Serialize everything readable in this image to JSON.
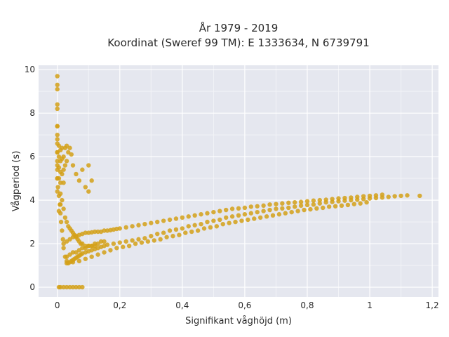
{
  "chart_data": {
    "type": "scatter",
    "title_lines": [
      "År 1979 - 2019",
      "Koordinat (Sweref 99 TM): E 1333634, N 6739791"
    ],
    "xlabel": "Signifikant våghöjd (m)",
    "ylabel": "Vågperiod (s)",
    "xlim": [
      -0.06,
      1.22
    ],
    "ylim": [
      -0.45,
      10.2
    ],
    "xticks": [
      0,
      0.2,
      0.4,
      0.6,
      0.8,
      1,
      1.2
    ],
    "xtick_labels": [
      "0",
      "0,2",
      "0,4",
      "0,6",
      "0,8",
      "1",
      "1,2"
    ],
    "yticks": [
      0,
      2,
      4,
      6,
      8,
      10
    ],
    "ytick_labels": [
      "0",
      "2",
      "4",
      "6",
      "8",
      "10"
    ],
    "grid": true,
    "colors": {
      "points": "#d4a017",
      "plot_bg": "#e5e7ef",
      "grid": "#ffffff"
    },
    "series": [
      {
        "x": [
          0.0,
          0.0,
          0.0,
          0.0,
          0.0,
          0.0,
          0.0,
          0.0,
          0.0,
          0.0,
          0.0,
          0.0,
          0.002,
          0.005,
          0.008,
          0.01,
          0.012,
          0.015,
          0.018,
          0.02,
          0.025,
          0.03,
          0.035,
          0.04,
          0.045,
          0.05,
          0.055,
          0.06,
          0.065,
          0.07,
          0.075,
          0.08,
          0.005,
          0.01,
          0.02,
          0.03,
          0.04,
          0.05,
          0.06,
          0.07,
          0.08,
          0.09,
          0.1,
          0.11,
          0.12,
          0.13,
          0.14,
          0.15,
          0.16,
          0.18,
          0.2,
          0.22,
          0.24,
          0.26,
          0.28,
          0.3,
          0.32,
          0.34,
          0.36,
          0.38,
          0.4,
          0.42,
          0.44,
          0.46,
          0.48,
          0.5,
          0.52,
          0.54,
          0.56,
          0.58,
          0.6,
          0.62,
          0.64,
          0.66,
          0.68,
          0.7,
          0.72,
          0.74,
          0.76,
          0.78,
          0.8,
          0.82,
          0.84,
          0.86,
          0.88,
          0.9,
          0.92,
          0.94,
          0.96,
          0.98,
          1.0,
          1.02,
          1.04,
          1.06,
          1.08,
          1.1,
          1.12,
          1.16,
          0.02,
          0.03,
          0.04,
          0.05,
          0.06,
          0.07,
          0.08,
          0.09,
          0.1,
          0.11,
          0.12,
          0.13,
          0.14,
          0.15,
          0.16,
          0.17,
          0.18,
          0.19,
          0.2,
          0.22,
          0.24,
          0.26,
          0.28,
          0.3,
          0.32,
          0.34,
          0.36,
          0.38,
          0.4,
          0.42,
          0.44,
          0.46,
          0.48,
          0.5,
          0.52,
          0.54,
          0.56,
          0.58,
          0.6,
          0.62,
          0.64,
          0.66,
          0.68,
          0.7,
          0.72,
          0.74,
          0.76,
          0.78,
          0.8,
          0.82,
          0.84,
          0.86,
          0.88,
          0.9,
          0.92,
          0.94,
          0.96,
          0.98,
          1.0,
          1.02,
          1.04,
          0.03,
          0.05,
          0.07,
          0.09,
          0.11,
          0.13,
          0.15,
          0.17,
          0.19,
          0.21,
          0.23,
          0.25,
          0.27,
          0.29,
          0.31,
          0.33,
          0.35,
          0.37,
          0.39,
          0.41,
          0.43,
          0.45,
          0.47,
          0.49,
          0.51,
          0.53,
          0.55,
          0.57,
          0.59,
          0.61,
          0.63,
          0.65,
          0.67,
          0.69,
          0.71,
          0.73,
          0.75,
          0.77,
          0.79,
          0.81,
          0.83,
          0.85,
          0.87,
          0.89,
          0.91,
          0.93,
          0.95,
          0.97,
          0.99,
          0.0,
          0.0,
          0.0,
          0.0,
          0.0,
          0.0,
          0.005,
          0.005,
          0.005,
          0.005,
          0.01,
          0.01,
          0.01,
          0.01,
          0.01,
          0.015,
          0.015,
          0.015,
          0.02,
          0.02,
          0.02,
          0.025,
          0.025,
          0.03,
          0.03,
          0.035,
          0.04,
          0.045,
          0.05,
          0.06,
          0.07,
          0.08,
          0.09,
          0.1,
          0.11,
          0.1,
          0.03,
          0.04,
          0.05,
          0.06,
          0.07,
          0.08,
          0.09,
          0.1,
          0.11,
          0.12,
          0.13,
          0.14,
          0.15,
          0.005,
          0.01,
          0.015,
          0.02,
          0.025,
          0.03,
          0.035,
          0.04,
          0.045,
          0.05,
          0.055,
          0.06,
          0.065,
          0.07,
          0.075,
          0.08,
          0.09,
          0.1,
          0.11,
          0.12
        ],
        "y": [
          9.7,
          9.3,
          9.1,
          8.4,
          8.2,
          7.4,
          7.0,
          6.6,
          6.2,
          5.8,
          5.4,
          5.0,
          4.6,
          4.2,
          3.8,
          3.4,
          3.0,
          2.6,
          2.2,
          1.8,
          1.4,
          1.2,
          1.1,
          1.15,
          1.2,
          1.25,
          1.3,
          1.35,
          1.4,
          1.45,
          1.5,
          1.55,
          0.0,
          0.0,
          0.0,
          0.0,
          0.0,
          0.0,
          0.0,
          0.0,
          0.0,
          1.6,
          1.65,
          1.7,
          1.75,
          1.8,
          1.85,
          1.9,
          1.95,
          2.0,
          2.05,
          2.1,
          2.15,
          2.2,
          2.25,
          2.35,
          2.45,
          2.5,
          2.6,
          2.65,
          2.7,
          2.8,
          2.85,
          2.9,
          3.0,
          3.05,
          3.1,
          3.2,
          3.25,
          3.3,
          3.35,
          3.4,
          3.45,
          3.5,
          3.55,
          3.6,
          3.62,
          3.65,
          3.7,
          3.75,
          3.78,
          3.8,
          3.85,
          3.9,
          3.92,
          3.95,
          3.98,
          4.0,
          4.02,
          4.05,
          4.08,
          4.1,
          4.12,
          4.15,
          4.18,
          4.2,
          4.22,
          4.2,
          2.0,
          2.1,
          2.2,
          2.3,
          2.35,
          2.4,
          2.45,
          2.5,
          2.5,
          2.52,
          2.55,
          2.55,
          2.55,
          2.6,
          2.6,
          2.62,
          2.65,
          2.68,
          2.7,
          2.75,
          2.8,
          2.85,
          2.9,
          2.95,
          3.0,
          3.05,
          3.1,
          3.15,
          3.2,
          3.25,
          3.3,
          3.35,
          3.4,
          3.45,
          3.5,
          3.55,
          3.6,
          3.62,
          3.65,
          3.7,
          3.72,
          3.75,
          3.8,
          3.82,
          3.85,
          3.88,
          3.9,
          3.92,
          3.95,
          3.98,
          4.0,
          4.02,
          4.05,
          4.08,
          4.1,
          4.12,
          4.15,
          4.18,
          4.2,
          4.22,
          4.25,
          1.1,
          1.15,
          1.2,
          1.3,
          1.4,
          1.5,
          1.6,
          1.7,
          1.8,
          1.85,
          1.9,
          2.0,
          2.05,
          2.1,
          2.15,
          2.2,
          2.3,
          2.35,
          2.4,
          2.5,
          2.55,
          2.6,
          2.7,
          2.75,
          2.8,
          2.9,
          2.95,
          3.0,
          3.05,
          3.1,
          3.15,
          3.2,
          3.25,
          3.3,
          3.35,
          3.4,
          3.45,
          3.5,
          3.55,
          3.58,
          3.62,
          3.65,
          3.7,
          3.72,
          3.75,
          3.78,
          3.82,
          3.85,
          3.9,
          7.4,
          6.8,
          6.2,
          5.6,
          5.0,
          4.4,
          6.5,
          6.0,
          5.5,
          5.0,
          6.3,
          5.8,
          5.3,
          4.8,
          4.3,
          6.4,
          5.9,
          5.2,
          6.0,
          5.4,
          4.8,
          6.4,
          5.6,
          6.5,
          5.8,
          6.2,
          6.4,
          6.1,
          5.6,
          5.2,
          4.9,
          5.4,
          4.6,
          5.6,
          4.9,
          4.4,
          1.4,
          1.5,
          1.6,
          1.6,
          1.7,
          1.8,
          1.8,
          1.9,
          1.9,
          2.0,
          2.0,
          2.1,
          2.1,
          3.5,
          3.8,
          4.0,
          3.6,
          3.2,
          3.0,
          2.8,
          2.7,
          2.6,
          2.5,
          2.4,
          2.3,
          2.2,
          2.1,
          2.0,
          2.0,
          1.9,
          1.9,
          1.9,
          1.9
        ]
      }
    ]
  }
}
